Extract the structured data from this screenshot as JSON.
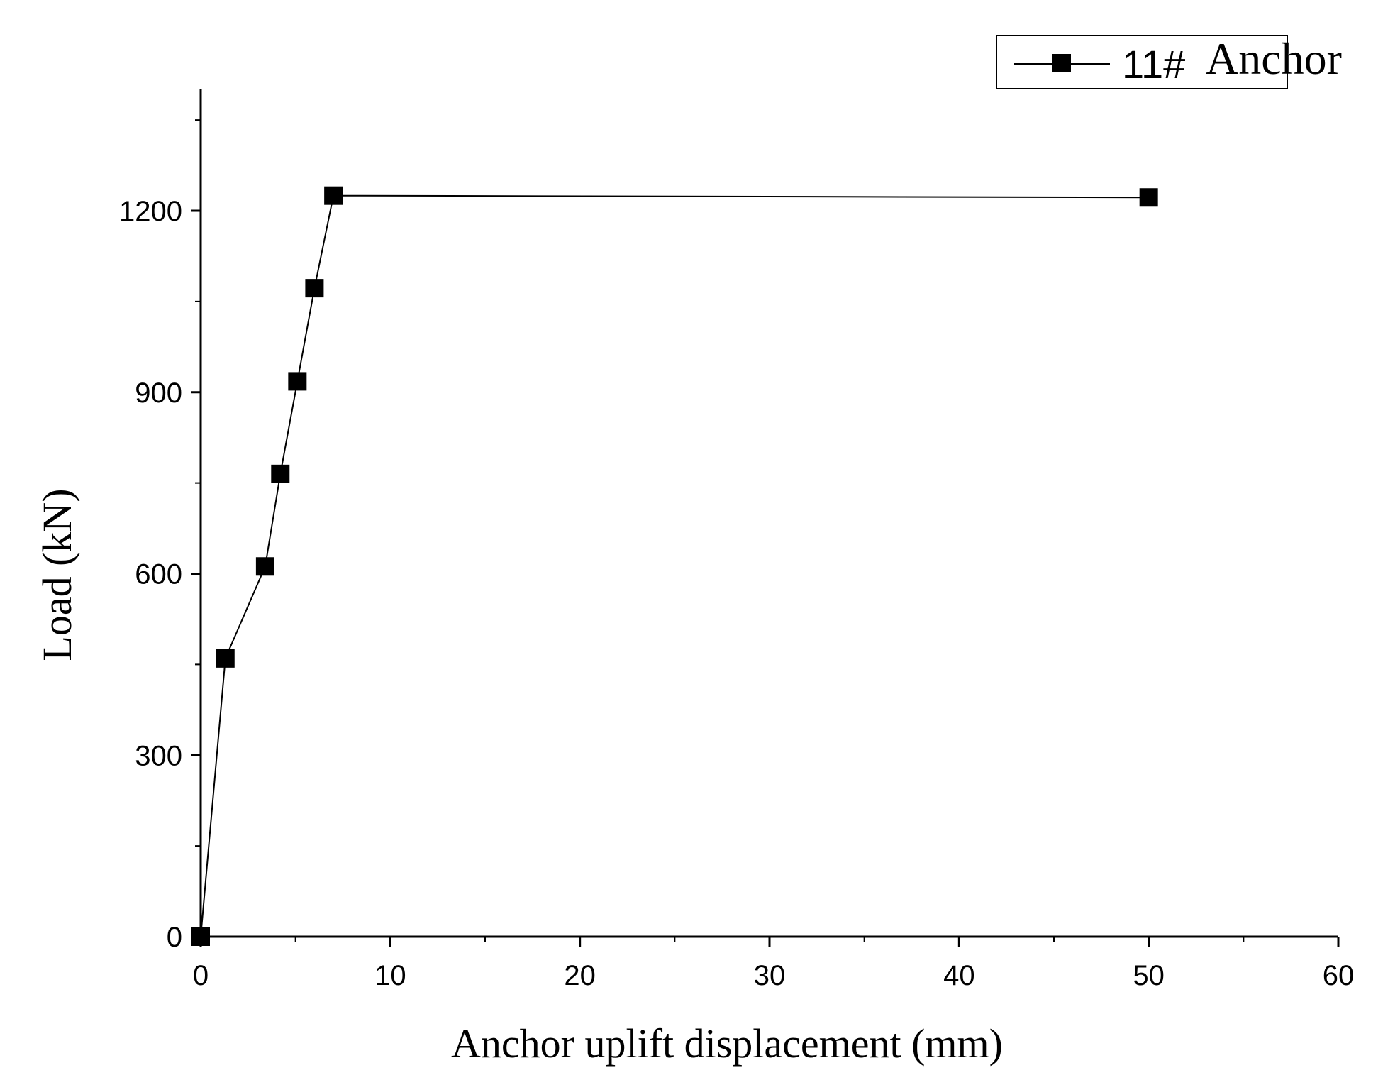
{
  "chart_data": {
    "type": "line",
    "xlabel": "Anchor uplift displacement (mm)",
    "ylabel": "Load (kN)",
    "xlim": [
      0,
      60
    ],
    "ylim": [
      0,
      1400
    ],
    "x_ticks": [
      0,
      10,
      20,
      30,
      40,
      50,
      60
    ],
    "y_ticks": [
      0,
      300,
      600,
      900,
      1200
    ],
    "x_tick_labels": [
      "0",
      "10",
      "20",
      "30",
      "40",
      "50",
      "60"
    ],
    "y_tick_labels": [
      "0",
      "300",
      "600",
      "900",
      "1200"
    ],
    "grid": false,
    "legend_position": "top-right",
    "legend": {
      "prefix": "11#",
      "word": "Anchor"
    },
    "series": [
      {
        "name": "11# Anchor",
        "marker": "square",
        "color": "#000000",
        "x": [
          0,
          1.3,
          3.4,
          4.2,
          5.1,
          6.0,
          7.0,
          50.0
        ],
        "y": [
          0,
          460,
          612,
          765,
          918,
          1072,
          1225,
          1222
        ]
      }
    ]
  }
}
